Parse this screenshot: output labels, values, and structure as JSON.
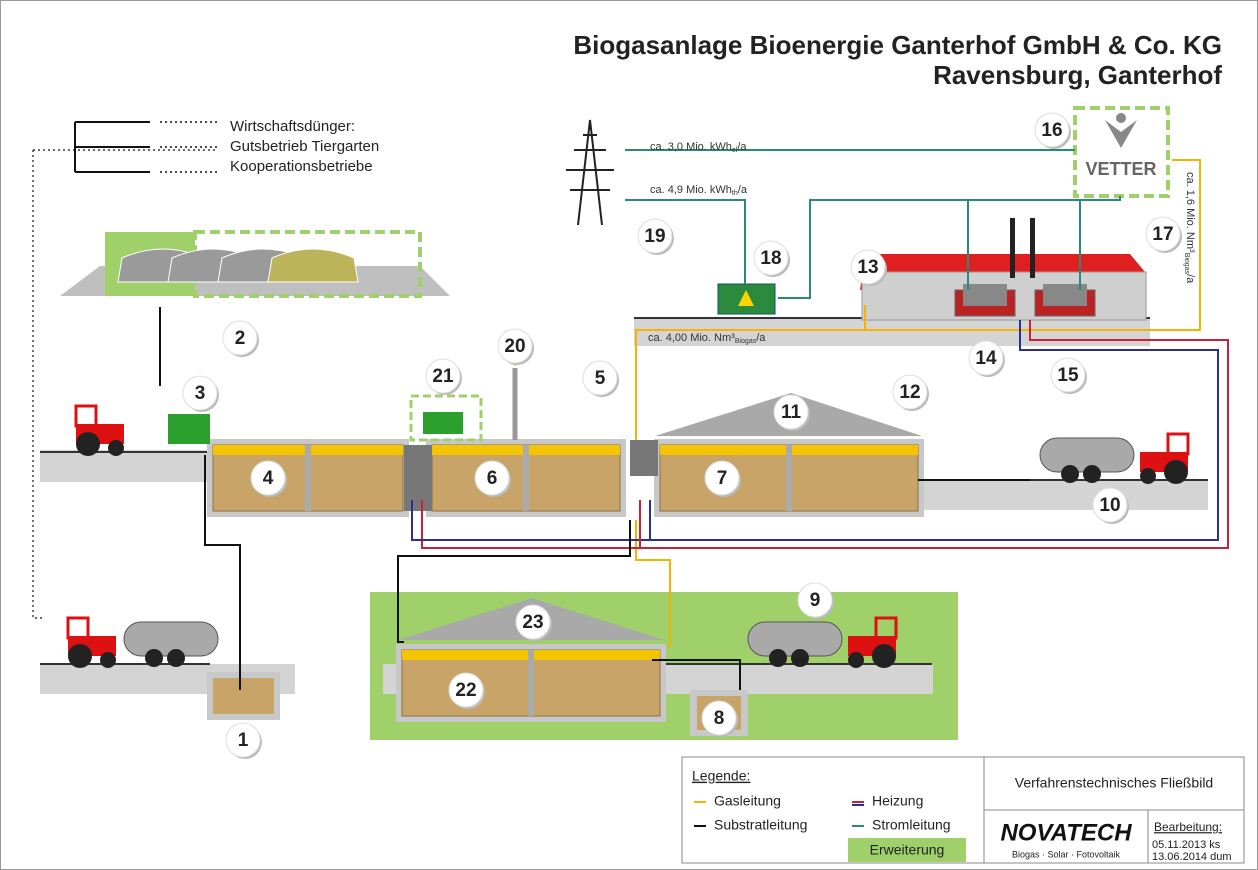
{
  "header": {
    "title": "Biogasanlage Bioenergie Ganterhof GmbH & Co. KG",
    "subtitle": "Ravensburg, Ganterhof"
  },
  "sources": {
    "heading": "Wirtschaftsdünger:",
    "items": [
      "Gutsbetrieb Tiergarten",
      "Kooperationsbetriebe"
    ]
  },
  "flows": [
    {
      "prefix": "ca. 3,0 Mio. kWh",
      "sub": "el",
      "suffix": "/a"
    },
    {
      "prefix": "ca. 4,9 Mio. kWh",
      "sub": "th",
      "suffix": "/a"
    },
    {
      "prefix": "ca. 4,00 Mio. Nm³",
      "sub": "Biogas",
      "suffix": "/a"
    },
    {
      "prefix": "ca. 1,6 Mio. Nm³",
      "sub": "Biogas",
      "suffix": "/a"
    }
  ],
  "nodes": [
    "1",
    "2",
    "3",
    "4",
    "5",
    "6",
    "7",
    "8",
    "9",
    "10",
    "11",
    "12",
    "13",
    "14",
    "15",
    "16",
    "17",
    "18",
    "19",
    "20",
    "21",
    "22",
    "23"
  ],
  "logos": {
    "vetter": "VETTER",
    "novatech": "NOVATECH",
    "novatech_tagline": "Biogas · Solar · Fotovoltaik"
  },
  "legend": {
    "title": "Legende:",
    "items": [
      {
        "label": "Gasleitung",
        "color": "#f5b400"
      },
      {
        "label": "Heizung",
        "color": "#c8213a"
      },
      {
        "label": "Substratleitung",
        "color": "#111111"
      },
      {
        "label": "Stromleitung",
        "color": "#2a8a78"
      }
    ],
    "expansion": {
      "label": "Erweiterung",
      "color": "#9fd06a"
    }
  },
  "title_block": {
    "drawing_title": "Verfahrenstechnisches Fließbild",
    "revision_heading": "Bearbeitung:",
    "revisions": [
      "05.11.2013  ks",
      "13.06.2014  dum"
    ]
  }
}
